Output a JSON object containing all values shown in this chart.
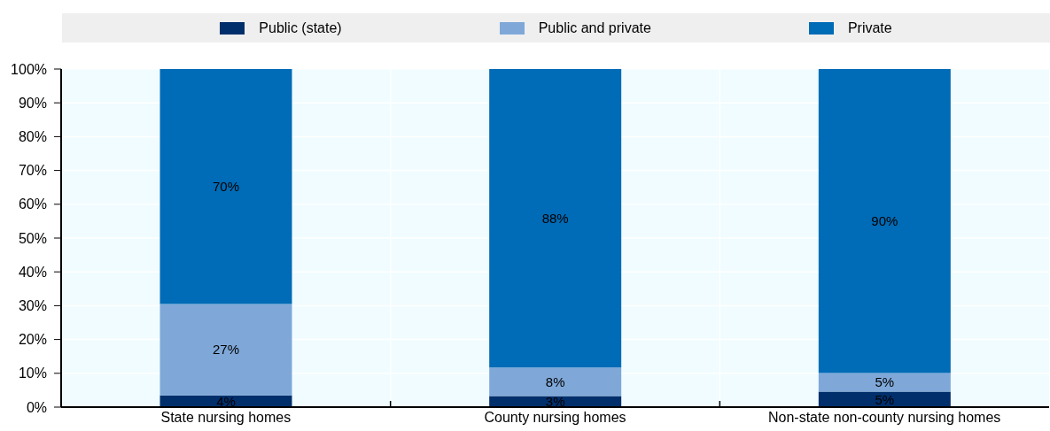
{
  "chart_data": {
    "type": "bar",
    "stacked": true,
    "categories": [
      "State nursing homes",
      "County nursing homes",
      "Non-state non-county nursing homes"
    ],
    "series": [
      {
        "name": "Public (state)",
        "color": "#002f6c",
        "values": [
          3.5,
          3.3,
          4.6
        ],
        "value_labels": [
          "4%",
          "3%",
          "5%"
        ]
      },
      {
        "name": "Public and private",
        "color": "#7fa8d9",
        "values": [
          27,
          8.4,
          5.5
        ],
        "value_labels": [
          "27%",
          "8%",
          "5%"
        ]
      },
      {
        "name": "Private",
        "color": "#006bb6",
        "values": [
          69.5,
          88.3,
          89.9
        ],
        "value_labels": [
          "70%",
          "88%",
          "90%"
        ]
      }
    ],
    "ylim": [
      0,
      100
    ],
    "yticks": [
      {
        "value": 0,
        "label": "0%"
      },
      {
        "value": 10,
        "label": "10%"
      },
      {
        "value": 20,
        "label": "20%"
      },
      {
        "value": 30,
        "label": "30%"
      },
      {
        "value": 40,
        "label": "40%"
      },
      {
        "value": 50,
        "label": "50%"
      },
      {
        "value": 60,
        "label": "60%"
      },
      {
        "value": 70,
        "label": "70%"
      },
      {
        "value": 80,
        "label": "80%"
      },
      {
        "value": 90,
        "label": "90%"
      },
      {
        "value": 100,
        "label": "100%"
      }
    ],
    "grid": true,
    "legend": "top"
  }
}
